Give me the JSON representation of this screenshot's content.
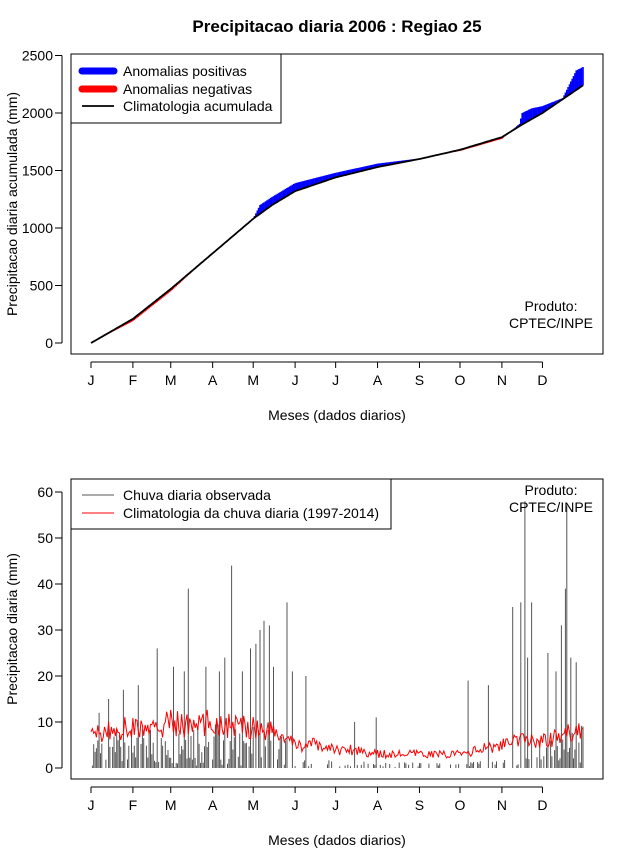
{
  "title": "Precipitacao diaria 2006 : Regiao 25",
  "chart_data": [
    {
      "type": "area",
      "title": "Precipitacao diaria 2006 : Regiao 25",
      "xlabel": "Meses (dados diarios)",
      "ylabel": "Precipitacao diaria acumulada (mm)",
      "xlim": [
        1,
        365
      ],
      "ylim": [
        0,
        2500
      ],
      "yticks": [
        "0",
        "500",
        "1000",
        "1500",
        "2000",
        "2500"
      ],
      "month_labels": [
        "J",
        "F",
        "M",
        "A",
        "M",
        "J",
        "J",
        "A",
        "S",
        "O",
        "N",
        "D"
      ],
      "month_days": [
        1,
        32,
        60,
        91,
        121,
        152,
        182,
        213,
        244,
        274,
        305,
        335
      ],
      "legend": [
        "Anomalias positivas",
        "Anomalias negativas",
        "Climatologia acumulada"
      ],
      "legend_colors": [
        "#0000ff",
        "#ff0000",
        "#000000"
      ],
      "annotation": [
        "Produto:",
        "CPTEC/INPE"
      ],
      "climatology_curve": {
        "day": [
          1,
          32,
          60,
          91,
          121,
          135,
          152,
          182,
          213,
          244,
          274,
          305,
          320,
          335,
          365
        ],
        "mm": [
          0,
          210,
          470,
          780,
          1080,
          1200,
          1320,
          1440,
          1530,
          1600,
          1680,
          1790,
          1900,
          2000,
          2240
        ]
      },
      "anomaly_curve": {
        "day": [
          1,
          32,
          60,
          91,
          121,
          126,
          135,
          152,
          182,
          213,
          244,
          274,
          305,
          318,
          320,
          327,
          335,
          350,
          360,
          365
        ],
        "mm": [
          0,
          190,
          450,
          785,
          1080,
          1200,
          1270,
          1390,
          1480,
          1560,
          1605,
          1670,
          1775,
          1905,
          2000,
          2040,
          2060,
          2130,
          2370,
          2400
        ]
      }
    },
    {
      "type": "bar",
      "xlabel": "Meses (dados diarios)",
      "ylabel": "Precipitacao diaria (mm)",
      "xlim": [
        1,
        365
      ],
      "ylim": [
        0,
        60
      ],
      "yticks": [
        "0",
        "10",
        "20",
        "30",
        "40",
        "50",
        "60"
      ],
      "month_labels": [
        "J",
        "F",
        "M",
        "A",
        "M",
        "J",
        "J",
        "A",
        "S",
        "O",
        "N",
        "D"
      ],
      "month_days": [
        1,
        32,
        60,
        91,
        121,
        152,
        182,
        213,
        244,
        274,
        305,
        335
      ],
      "legend": [
        "Chuva diaria observada",
        "Climatologia da chuva diaria (1997-2014)"
      ],
      "legend_colors": [
        "#555555",
        "#ff0000"
      ],
      "annotation": [
        "Produto:",
        "CPTEC/INPE"
      ],
      "observed_peaks": {
        "day": [
          7,
          14,
          25,
          36,
          50,
          62,
          70,
          73,
          86,
          96,
          100,
          105,
          113,
          119,
          123,
          126,
          129,
          133,
          136,
          146,
          150,
          160,
          196,
          212,
          280,
          295,
          313,
          319,
          322,
          324,
          327,
          333,
          339,
          345,
          349,
          352,
          353,
          356,
          360,
          365
        ],
        "mm": [
          12,
          15,
          17,
          18,
          26,
          22,
          21,
          39,
          22,
          21,
          24,
          44,
          21,
          26,
          27,
          30,
          32,
          31,
          22,
          36,
          21,
          20,
          10,
          11,
          19,
          18,
          35,
          36,
          58,
          24,
          36,
          6,
          25,
          21,
          31,
          39,
          57,
          24,
          23,
          9
        ]
      },
      "climatology_daily": {
        "day": [
          1,
          15,
          32,
          45,
          60,
          75,
          91,
          105,
          121,
          135,
          152,
          166,
          182,
          197,
          213,
          228,
          244,
          259,
          274,
          289,
          305,
          320,
          335,
          350,
          365
        ],
        "mm": [
          7,
          8,
          9,
          8,
          10,
          9,
          10,
          9,
          9,
          8,
          5,
          5,
          4,
          4,
          3,
          3,
          3,
          3,
          3,
          4,
          5,
          6,
          6,
          7,
          9
        ]
      }
    }
  ]
}
